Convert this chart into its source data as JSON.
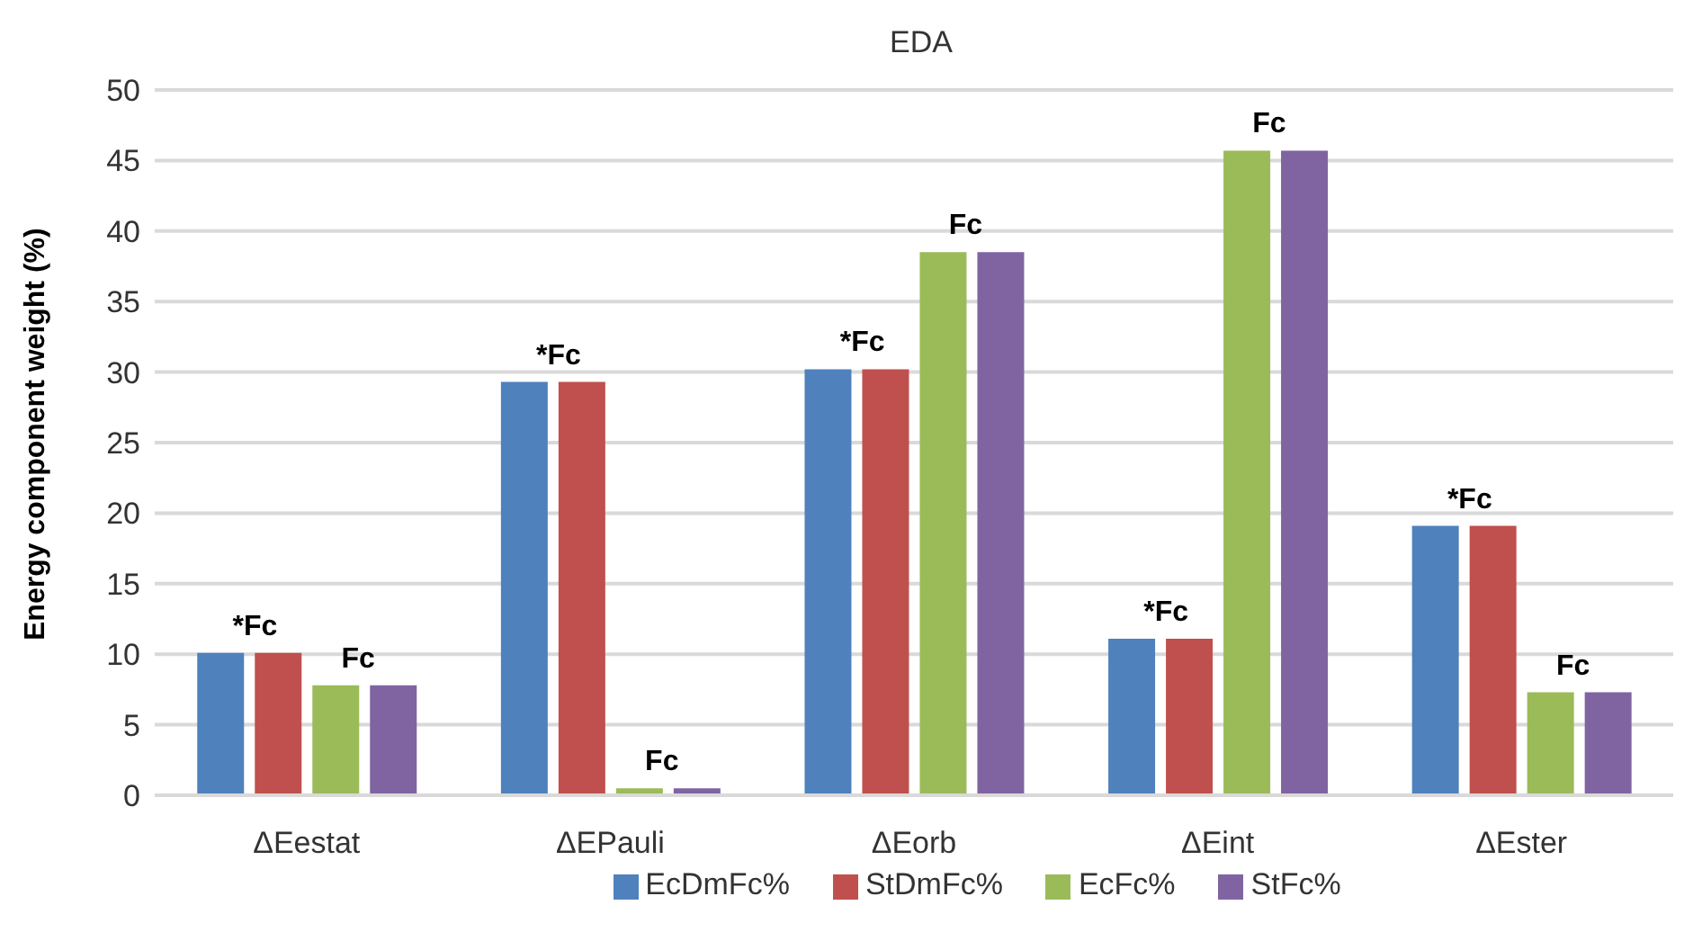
{
  "chart_data": {
    "type": "bar",
    "title": "EDA",
    "ylabel": "Energy component weight (%)",
    "categories": [
      "ΔEestat",
      "ΔEPauli",
      "ΔEorb",
      "ΔEint",
      "ΔEster"
    ],
    "series": [
      {
        "name": "EcDmFc%",
        "color": "#4f81bd",
        "values": [
          10.1,
          29.3,
          30.2,
          11.1,
          19.1
        ]
      },
      {
        "name": "StDmFc%",
        "color": "#c0504d",
        "values": [
          10.1,
          29.3,
          30.2,
          11.1,
          19.1
        ]
      },
      {
        "name": "EcFc%",
        "color": "#9bbb59",
        "values": [
          7.8,
          0.5,
          38.5,
          45.7,
          7.3
        ]
      },
      {
        "name": "StFc%",
        "color": "#8064a2",
        "values": [
          7.8,
          0.5,
          38.5,
          45.7,
          7.3
        ]
      }
    ],
    "ylim": [
      0,
      50
    ],
    "yticks": [
      0,
      5,
      10,
      15,
      20,
      25,
      30,
      35,
      40,
      45,
      50
    ],
    "grid": "y",
    "legend": "bottom",
    "annotations": [
      {
        "text": "*Fc",
        "x": "ΔEestat",
        "y": 10.1
      },
      {
        "text": "Fc",
        "x": "ΔEestat",
        "y": 7.8
      },
      {
        "text": "*Fc",
        "x": "ΔEPauli",
        "y": 29.3
      },
      {
        "text": "Fc",
        "x": "ΔEPauli",
        "y": 0.5
      },
      {
        "text": "*Fc",
        "x": "ΔEorb",
        "y": 30.2
      },
      {
        "text": "Fc",
        "x": "ΔEorb",
        "y": 38.5
      },
      {
        "text": "*Fc",
        "x": "ΔEint",
        "y": 11.1
      },
      {
        "text": "Fc",
        "x": "ΔEint",
        "y": 45.7
      },
      {
        "text": "*Fc",
        "x": "ΔEster",
        "y": 19.1
      },
      {
        "text": "Fc",
        "x": "ΔEster",
        "y": 7.3
      }
    ]
  }
}
